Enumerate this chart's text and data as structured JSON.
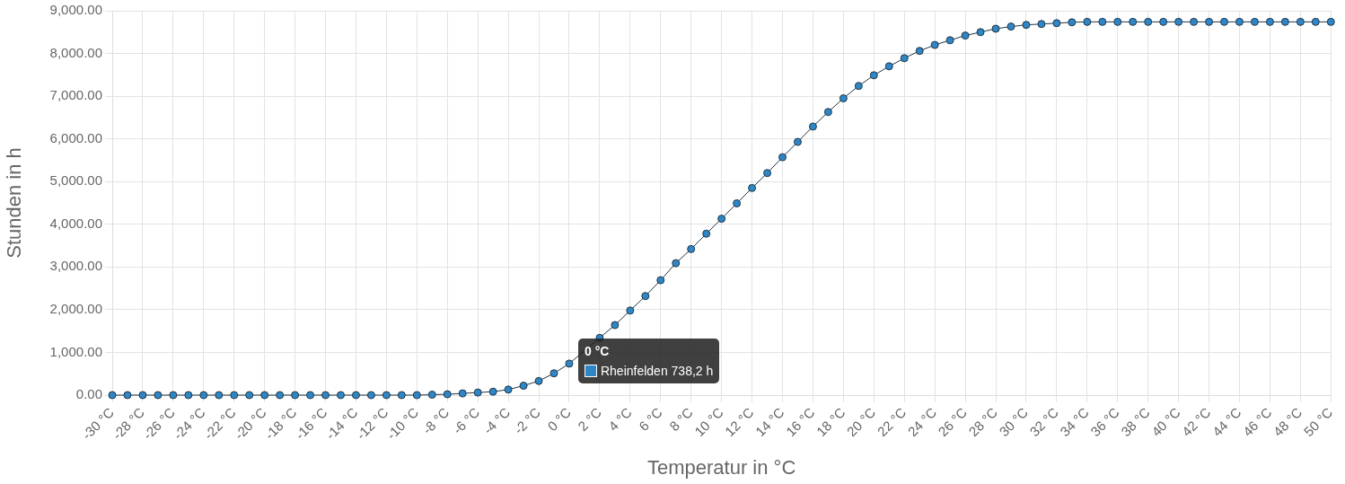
{
  "chart_data": {
    "type": "line",
    "xlabel": "Temperatur in °C",
    "ylabel": "Stunden in h",
    "categories": [
      "-30 °C",
      null,
      "-28 °C",
      null,
      "-26 °C",
      null,
      "-24 °C",
      null,
      "-22 °C",
      null,
      "-20 °C",
      null,
      "-18 °C",
      null,
      "-16 °C",
      null,
      "-14 °C",
      null,
      "-12 °C",
      null,
      "-10 °C",
      null,
      "-8 °C",
      null,
      "-6 °C",
      null,
      "-4 °C",
      null,
      "-2 °C",
      null,
      "0 °C",
      null,
      "2 °C",
      null,
      "4 °C",
      null,
      "6 °C",
      null,
      "8 °C",
      null,
      "10 °C",
      null,
      "12 °C",
      null,
      "14 °C",
      null,
      "16 °C",
      null,
      "18 °C",
      null,
      "20 °C",
      null,
      "22 °C",
      null,
      "24 °C",
      null,
      "26 °C",
      null,
      "28 °C",
      null,
      "30 °C",
      null,
      "32 °C",
      null,
      "34 °C",
      null,
      "36 °C",
      null,
      "38 °C",
      null,
      "40 °C",
      null,
      "42 °C",
      null,
      "44 °C",
      null,
      "46 °C",
      null,
      "48 °C",
      null,
      "50 °C"
    ],
    "series": [
      {
        "name": "Rheinfelden",
        "color": "#2f86c6",
        "values": [
          0,
          0,
          0,
          0,
          0,
          0,
          0,
          0,
          0,
          0,
          0,
          0,
          0,
          0,
          0,
          0,
          0,
          0,
          0,
          0,
          0,
          10,
          20,
          40,
          60,
          80,
          130,
          220,
          330,
          510,
          738.2,
          null,
          1340,
          1640,
          1980,
          2320,
          2690,
          3090,
          3420,
          3780,
          4130,
          4490,
          4850,
          5200,
          5570,
          5930,
          6290,
          6630,
          6950,
          7240,
          7490,
          7700,
          7890,
          8060,
          8200,
          8310,
          8420,
          8500,
          8580,
          8630,
          8670,
          8690,
          8710,
          8730,
          8740,
          8740,
          8740,
          8740,
          8740,
          8740,
          8740,
          8740,
          8740,
          8740,
          8740,
          8740,
          8740,
          8740,
          8740,
          8740,
          8740
        ],
        "value_labels": [
          null,
          null,
          null,
          null,
          null,
          null,
          null,
          null,
          null,
          null,
          null,
          null,
          null,
          null,
          null,
          null,
          null,
          null,
          null,
          null,
          null,
          null,
          null,
          null,
          null,
          null,
          null,
          null,
          null,
          null,
          "738,2 h",
          null,
          null,
          null,
          null,
          null,
          null,
          null,
          null,
          null,
          null,
          null,
          null,
          null,
          null,
          null,
          null,
          null,
          null,
          null,
          null,
          null,
          null,
          null,
          null,
          null,
          null,
          null,
          null,
          null,
          null,
          null,
          null,
          null,
          null,
          null,
          null,
          null,
          null,
          null,
          null,
          null,
          null,
          null,
          null,
          null,
          null,
          null,
          null,
          null,
          null
        ]
      }
    ],
    "ylim": [
      0,
      9000
    ],
    "yticks": [
      {
        "value": 0,
        "label": "0.00"
      },
      {
        "value": 1000,
        "label": "1,000.00"
      },
      {
        "value": 2000,
        "label": "2,000.00"
      },
      {
        "value": 3000,
        "label": "3,000.00"
      },
      {
        "value": 4000,
        "label": "4,000.00"
      },
      {
        "value": 5000,
        "label": "5,000.00"
      },
      {
        "value": 6000,
        "label": "6,000.00"
      },
      {
        "value": 7000,
        "label": "7,000.00"
      },
      {
        "value": 8000,
        "label": "8,000.00"
      },
      {
        "value": 9000,
        "label": "9,000.00"
      }
    ],
    "grid": true,
    "marker": "circle",
    "line_style": "solid"
  }
}
